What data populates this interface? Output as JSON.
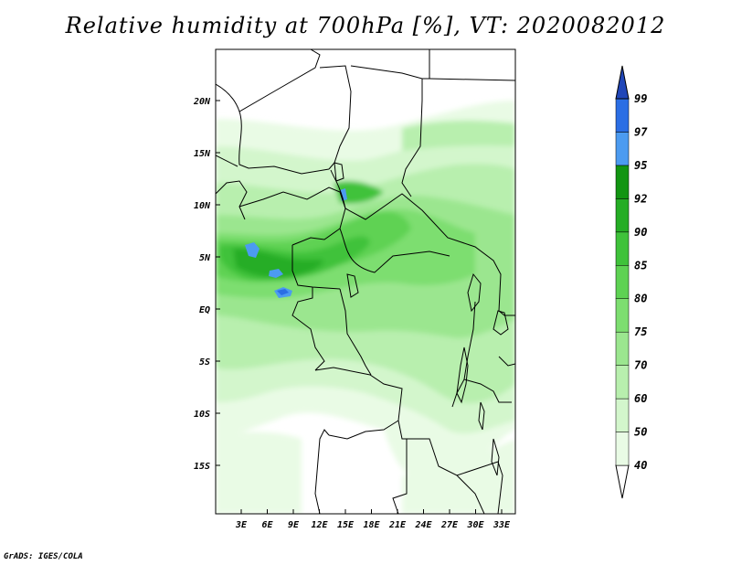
{
  "title": "Relative humidity at 700hPa [%], VT: 2020082012",
  "credit": "GrADS: IGES/COLA",
  "map": {
    "lat_labels": [
      "20N",
      "15N",
      "10N",
      "5N",
      "EQ",
      "5S",
      "10S",
      "15S"
    ],
    "lon_labels": [
      "3E",
      "6E",
      "9E",
      "12E",
      "15E",
      "18E",
      "21E",
      "24E",
      "27E",
      "30E",
      "33E"
    ]
  },
  "colorbar": {
    "levels": [
      "40",
      "50",
      "60",
      "70",
      "75",
      "80",
      "85",
      "90",
      "92",
      "95",
      "97",
      "99"
    ],
    "colors": [
      "#ffffff",
      "#e9fbe5",
      "#d3f6cc",
      "#b8efae",
      "#9be68f",
      "#7dde70",
      "#5ed253",
      "#3fc23a",
      "#25ad25",
      "#129512",
      "#4c9bf0",
      "#2b6ee4",
      "#2046b8"
    ]
  }
}
